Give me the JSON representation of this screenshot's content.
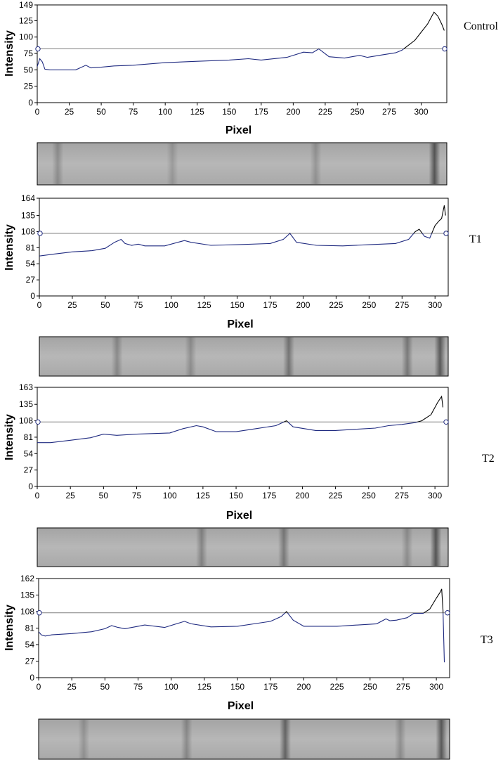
{
  "chart_data": [
    {
      "type": "line",
      "label": "Control",
      "xlabel": "Pixel",
      "ylabel": "Intensity",
      "xlim": [
        0,
        320
      ],
      "ylim": [
        0,
        149
      ],
      "xticks": [
        0,
        25,
        50,
        75,
        100,
        125,
        150,
        175,
        200,
        225,
        250,
        275,
        300
      ],
      "yticks": [
        0,
        25,
        50,
        75,
        100,
        125,
        149
      ],
      "threshold": 82,
      "colors": {
        "profile": "#1f2a80",
        "above": "#000000",
        "threshold": "#808080"
      },
      "x": [
        0,
        2,
        4,
        6,
        10,
        20,
        30,
        38,
        42,
        50,
        60,
        75,
        100,
        125,
        150,
        165,
        175,
        195,
        208,
        215,
        220,
        228,
        240,
        252,
        258,
        270,
        280,
        285,
        295,
        305,
        310,
        313,
        316,
        318
      ],
      "y": [
        55,
        67,
        62,
        51,
        50,
        50,
        50,
        57,
        53,
        54,
        56,
        57,
        61,
        63,
        65,
        67,
        65,
        69,
        77,
        76,
        82,
        70,
        68,
        72,
        69,
        73,
        76,
        80,
        95,
        120,
        138,
        132,
        120,
        110
      ]
    },
    {
      "type": "line",
      "label": "T1",
      "xlabel": "Pixel",
      "ylabel": "Intensity",
      "xlim": [
        0,
        310
      ],
      "ylim": [
        0,
        164
      ],
      "xticks": [
        0,
        25,
        50,
        75,
        100,
        125,
        150,
        175,
        200,
        225,
        250,
        275,
        300
      ],
      "yticks": [
        0,
        27,
        54,
        81,
        108,
        135,
        164
      ],
      "threshold": 105,
      "colors": {
        "profile": "#1f2a80",
        "above": "#000000",
        "threshold": "#808080"
      },
      "x": [
        0,
        10,
        25,
        40,
        50,
        57,
        62,
        65,
        70,
        75,
        80,
        95,
        110,
        115,
        130,
        150,
        175,
        185,
        190,
        195,
        210,
        230,
        250,
        270,
        280,
        285,
        288,
        292,
        296,
        300,
        303,
        305,
        307,
        308
      ],
      "y": [
        67,
        70,
        74,
        76,
        80,
        90,
        95,
        88,
        85,
        87,
        84,
        84,
        93,
        90,
        85,
        86,
        88,
        95,
        105,
        90,
        85,
        84,
        86,
        88,
        95,
        108,
        112,
        100,
        97,
        118,
        126,
        130,
        152,
        135
      ]
    },
    {
      "type": "line",
      "label": "T2",
      "xlabel": "Pixel",
      "ylabel": "Intensity",
      "xlim": [
        0,
        310
      ],
      "ylim": [
        0,
        163
      ],
      "xticks": [
        0,
        25,
        50,
        75,
        100,
        125,
        150,
        175,
        200,
        225,
        250,
        275,
        300
      ],
      "yticks": [
        0,
        27,
        54,
        81,
        108,
        135,
        163
      ],
      "threshold": 106,
      "colors": {
        "profile": "#1f2a80",
        "above": "#000000",
        "threshold": "#808080"
      },
      "x": [
        0,
        10,
        25,
        40,
        50,
        60,
        75,
        100,
        110,
        120,
        125,
        135,
        150,
        165,
        180,
        188,
        193,
        210,
        225,
        240,
        255,
        265,
        275,
        285,
        290,
        297,
        302,
        305,
        306
      ],
      "y": [
        72,
        72,
        76,
        80,
        86,
        84,
        86,
        88,
        95,
        100,
        98,
        90,
        90,
        95,
        100,
        108,
        98,
        92,
        92,
        94,
        96,
        100,
        102,
        105,
        108,
        118,
        138,
        148,
        130
      ]
    },
    {
      "type": "line",
      "label": "T3",
      "xlabel": "Pixel",
      "ylabel": "Intensity",
      "xlim": [
        0,
        310
      ],
      "ylim": [
        0,
        162
      ],
      "xticks": [
        0,
        25,
        50,
        75,
        100,
        125,
        150,
        175,
        200,
        225,
        250,
        275,
        300
      ],
      "yticks": [
        0,
        27,
        54,
        81,
        108,
        135,
        162
      ],
      "threshold": 106,
      "colors": {
        "profile": "#1f2a80",
        "above": "#000000",
        "threshold": "#808080"
      },
      "x": [
        0,
        2,
        5,
        10,
        25,
        40,
        50,
        55,
        60,
        65,
        75,
        80,
        95,
        110,
        115,
        130,
        150,
        175,
        183,
        187,
        192,
        200,
        225,
        255,
        262,
        265,
        270,
        278,
        283,
        290,
        295,
        300,
        303,
        304,
        305,
        306
      ],
      "y": [
        75,
        70,
        68,
        70,
        72,
        75,
        80,
        85,
        82,
        80,
        84,
        86,
        82,
        92,
        88,
        83,
        84,
        92,
        100,
        108,
        94,
        84,
        84,
        88,
        96,
        93,
        94,
        98,
        105,
        105,
        112,
        130,
        140,
        145,
        110,
        25
      ]
    }
  ],
  "gels": [
    {
      "bands": [
        {
          "x": 0.05,
          "d": 0.35
        },
        {
          "x": 0.33,
          "d": 0.25
        },
        {
          "x": 0.68,
          "d": 0.3
        },
        {
          "x": 0.97,
          "d": 0.9
        }
      ]
    },
    {
      "bands": [
        {
          "x": 0.19,
          "d": 0.4
        },
        {
          "x": 0.37,
          "d": 0.35
        },
        {
          "x": 0.61,
          "d": 0.6
        },
        {
          "x": 0.9,
          "d": 0.55
        },
        {
          "x": 0.98,
          "d": 0.85
        }
      ]
    },
    {
      "bands": [
        {
          "x": 0.4,
          "d": 0.45
        },
        {
          "x": 0.6,
          "d": 0.55
        },
        {
          "x": 0.9,
          "d": 0.35
        },
        {
          "x": 0.97,
          "d": 0.9
        }
      ]
    },
    {
      "bands": [
        {
          "x": 0.11,
          "d": 0.3
        },
        {
          "x": 0.36,
          "d": 0.4
        },
        {
          "x": 0.6,
          "d": 0.75
        },
        {
          "x": 0.88,
          "d": 0.35
        },
        {
          "x": 0.98,
          "d": 0.85
        }
      ]
    }
  ]
}
